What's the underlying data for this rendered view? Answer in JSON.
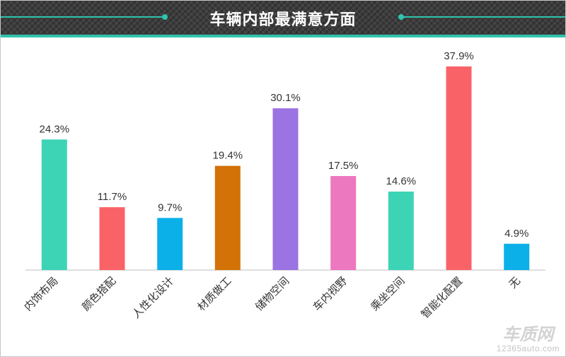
{
  "chart_data": {
    "type": "bar",
    "title": "车辆内部最满意方面",
    "categories": [
      "内饰布局",
      "颜色搭配",
      "人性化设计",
      "材质做工",
      "储物空间",
      "车内视野",
      "乘坐空间",
      "智能化配置",
      "无"
    ],
    "values": [
      24.3,
      11.7,
      9.7,
      19.4,
      30.1,
      17.5,
      14.6,
      37.9,
      4.9
    ],
    "value_labels": [
      "24.3%",
      "11.7%",
      "9.7%",
      "19.4%",
      "30.1%",
      "17.5%",
      "14.6%",
      "37.9%",
      "4.9%"
    ],
    "colors": [
      "#3dd4b6",
      "#f96368",
      "#0bb0e9",
      "#d37207",
      "#9b73e2",
      "#ec78bf",
      "#3dd4b6",
      "#f96368",
      "#0bb0e9"
    ],
    "ylim": [
      0,
      40
    ],
    "grid": false,
    "xlabel": "",
    "ylabel": ""
  },
  "colors": {
    "header_bg": "#3d3d3d",
    "accent": "#2fc4ad"
  },
  "watermark": {
    "logo": "车质网",
    "url": "12365auto.com"
  }
}
